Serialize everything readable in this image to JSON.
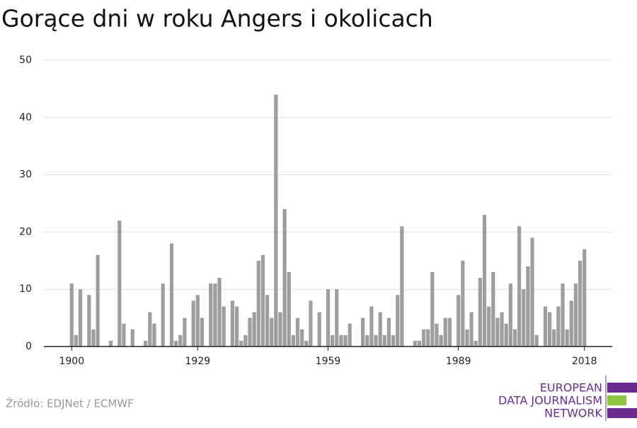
{
  "chart_data": {
    "type": "bar",
    "title": "Gorące dni w roku Angers i okolicach",
    "x": [
      1900,
      1901,
      1902,
      1903,
      1904,
      1905,
      1906,
      1907,
      1908,
      1909,
      1910,
      1911,
      1912,
      1913,
      1914,
      1915,
      1916,
      1917,
      1918,
      1919,
      1920,
      1921,
      1922,
      1923,
      1924,
      1925,
      1926,
      1927,
      1928,
      1929,
      1930,
      1931,
      1932,
      1933,
      1934,
      1935,
      1936,
      1937,
      1938,
      1939,
      1940,
      1941,
      1942,
      1943,
      1944,
      1945,
      1946,
      1947,
      1948,
      1949,
      1950,
      1951,
      1952,
      1953,
      1954,
      1955,
      1956,
      1957,
      1958,
      1959,
      1960,
      1961,
      1962,
      1963,
      1964,
      1965,
      1966,
      1967,
      1968,
      1969,
      1970,
      1971,
      1972,
      1973,
      1974,
      1975,
      1976,
      1977,
      1978,
      1979,
      1980,
      1981,
      1982,
      1983,
      1984,
      1985,
      1986,
      1987,
      1988,
      1989,
      1990,
      1991,
      1992,
      1993,
      1994,
      1995,
      1996,
      1997,
      1998,
      1999,
      2000,
      2001,
      2002,
      2003,
      2004,
      2005,
      2006,
      2007,
      2008,
      2009,
      2010,
      2011,
      2012,
      2013,
      2014,
      2015,
      2016,
      2017,
      2018
    ],
    "values": [
      11,
      2,
      10,
      0,
      9,
      3,
      16,
      0,
      0,
      1,
      0,
      22,
      4,
      0,
      3,
      0,
      0,
      1,
      6,
      4,
      0,
      11,
      0,
      18,
      1,
      2,
      5,
      0,
      8,
      9,
      5,
      0,
      11,
      11,
      12,
      7,
      0,
      8,
      7,
      1,
      2,
      5,
      6,
      15,
      16,
      9,
      5,
      44,
      6,
      24,
      13,
      2,
      5,
      3,
      1,
      8,
      0,
      6,
      0,
      10,
      2,
      10,
      2,
      2,
      4,
      0,
      0,
      5,
      2,
      7,
      2,
      6,
      2,
      5,
      2,
      9,
      21,
      0,
      0,
      1,
      1,
      3,
      3,
      13,
      4,
      2,
      5,
      5,
      0,
      9,
      15,
      3,
      6,
      1,
      12,
      23,
      7,
      13,
      5,
      6,
      4,
      11,
      3,
      21,
      10,
      14,
      19,
      2,
      0,
      7,
      6,
      3,
      7,
      11,
      3,
      8,
      11,
      15,
      17
    ],
    "color": "#9e9e9e",
    "xlim": [
      1893.6,
      2024.4
    ],
    "xticks": [
      1900,
      1929,
      1959,
      1989,
      2018
    ],
    "ylim": [
      0,
      50
    ],
    "yticks": [
      0,
      10,
      20,
      30,
      40,
      50
    ],
    "grid": true,
    "source": "Źródło: EDJNet / ECMWF",
    "logo": [
      "EUROPEAN",
      "DATA JOURNALISM",
      "NETWORK"
    ]
  }
}
